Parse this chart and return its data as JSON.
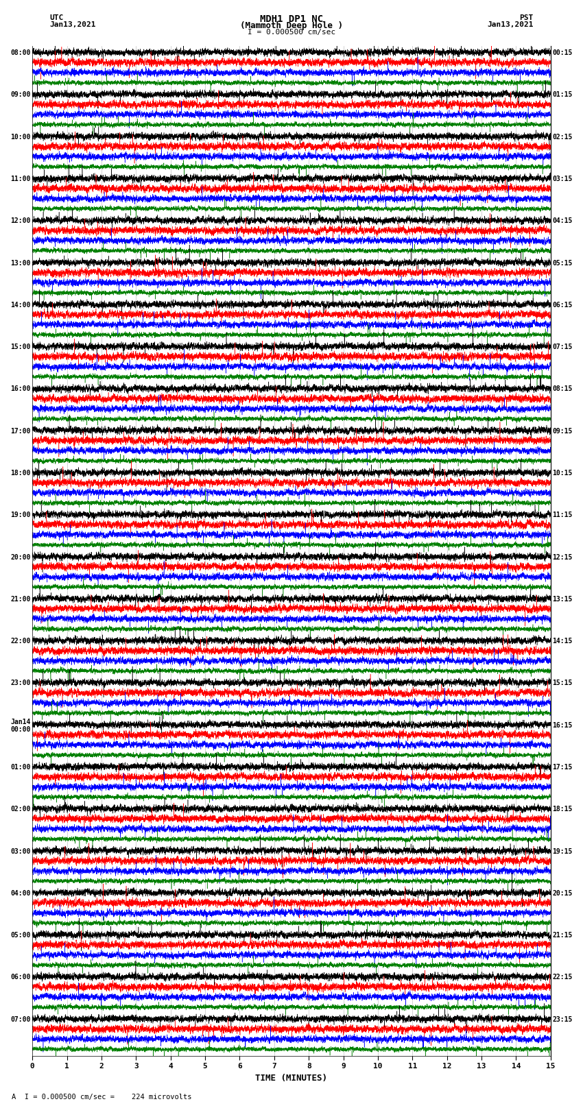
{
  "title_line1": "MDH1 DP1 NC",
  "title_line2": "(Mammoth Deep Hole )",
  "scale_text": "I = 0.000500 cm/sec",
  "xlabel": "TIME (MINUTES)",
  "footer_text": "A  I = 0.000500 cm/sec =    224 microvolts",
  "utc_labels": [
    "08:00",
    "09:00",
    "10:00",
    "11:00",
    "12:00",
    "13:00",
    "14:00",
    "15:00",
    "16:00",
    "17:00",
    "18:00",
    "19:00",
    "20:00",
    "21:00",
    "22:00",
    "23:00",
    "Jan14\n00:00",
    "01:00",
    "02:00",
    "03:00",
    "04:00",
    "05:00",
    "06:00",
    "07:00"
  ],
  "pst_labels": [
    "00:15",
    "01:15",
    "02:15",
    "03:15",
    "04:15",
    "05:15",
    "06:15",
    "07:15",
    "08:15",
    "09:15",
    "10:15",
    "11:15",
    "12:15",
    "13:15",
    "14:15",
    "15:15",
    "16:15",
    "17:15",
    "18:15",
    "19:15",
    "20:15",
    "21:15",
    "22:15",
    "23:15"
  ],
  "n_rows": 24,
  "traces_per_row": 4,
  "trace_colors": [
    "black",
    "red",
    "blue",
    "green"
  ],
  "x_min": 0,
  "x_max": 15,
  "x_ticks": [
    0,
    1,
    2,
    3,
    4,
    5,
    6,
    7,
    8,
    9,
    10,
    11,
    12,
    13,
    14,
    15
  ],
  "bg_color": "white",
  "noise_amp": [
    0.38,
    0.42,
    0.38,
    0.25
  ],
  "hf_amp": [
    0.3,
    0.32,
    0.28,
    0.2
  ],
  "spike_prob": 0.0015,
  "spike_amp": [
    2.5,
    2.8,
    2.2,
    1.8
  ]
}
